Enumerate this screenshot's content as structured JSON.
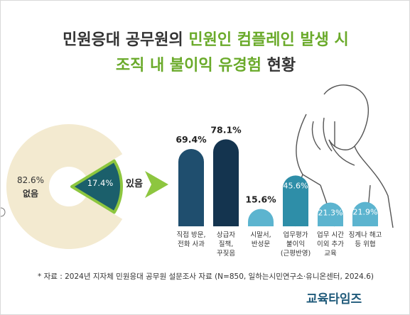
{
  "title": {
    "line1": [
      {
        "text": "민원응대 공무원의 ",
        "color": "#333333"
      },
      {
        "text": "민원인 컴플레인 발생 시",
        "color": "#6aaa2a"
      }
    ],
    "line2": [
      {
        "text": "조직 내 불이익 유경험",
        "color": "#6aaa2a"
      },
      {
        "text": " 현황",
        "color": "#333333"
      }
    ]
  },
  "chart_data": [
    {
      "type": "pie",
      "categories": [
        "없음",
        "있음"
      ],
      "values": [
        82.6,
        17.4
      ],
      "value_labels": [
        "82.6%",
        "17.4%"
      ],
      "colors": [
        "#f3ead0",
        "#1b5f6b"
      ]
    },
    {
      "type": "bar",
      "categories": [
        "직접 방문,\n전화 사과",
        "상급자\n질책,\n꾸짖음",
        "시말서,\n반성문",
        "업무평가\n불이익\n(근평반영)",
        "업무 시간\n이외 추가\n교육",
        "징계나 해고\n등 위협"
      ],
      "values": [
        69.4,
        78.1,
        15.6,
        45.6,
        21.3,
        21.9
      ],
      "value_labels": [
        "69.4%",
        "78.1%",
        "15.6%",
        "45.6%",
        "21.3%",
        "21.9%"
      ],
      "colors": [
        "#1f4e6e",
        "#14344f",
        "#5cb4cf",
        "#2e8ea8",
        "#5cb4cf",
        "#5cb4cf"
      ]
    }
  ],
  "source": "* 자료 : 2024년 지자체 민원응대 공무원 설문조사 자료 (N=850, 일하는시민연구소·유니온센터, 2024.6)",
  "logo": "교육타임즈"
}
